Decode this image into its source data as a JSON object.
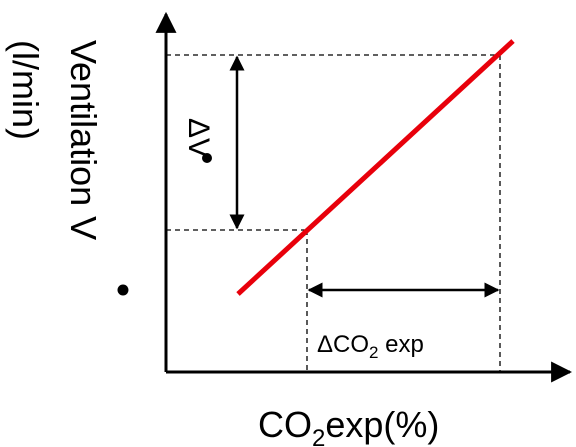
{
  "diagram": {
    "x_axis_label": {
      "prefix": "CO",
      "sub": "2",
      "suffix": "exp(%)"
    },
    "y_axis_label": {
      "main": "Ventilation V",
      "unit": "(l/min)"
    },
    "delta_v_label": "ΔV",
    "delta_co2_label": {
      "prefix": "ΔCO",
      "sub": "2",
      "suffix": " exp"
    },
    "line_color": "#e8000b",
    "axis_color": "#000000"
  }
}
